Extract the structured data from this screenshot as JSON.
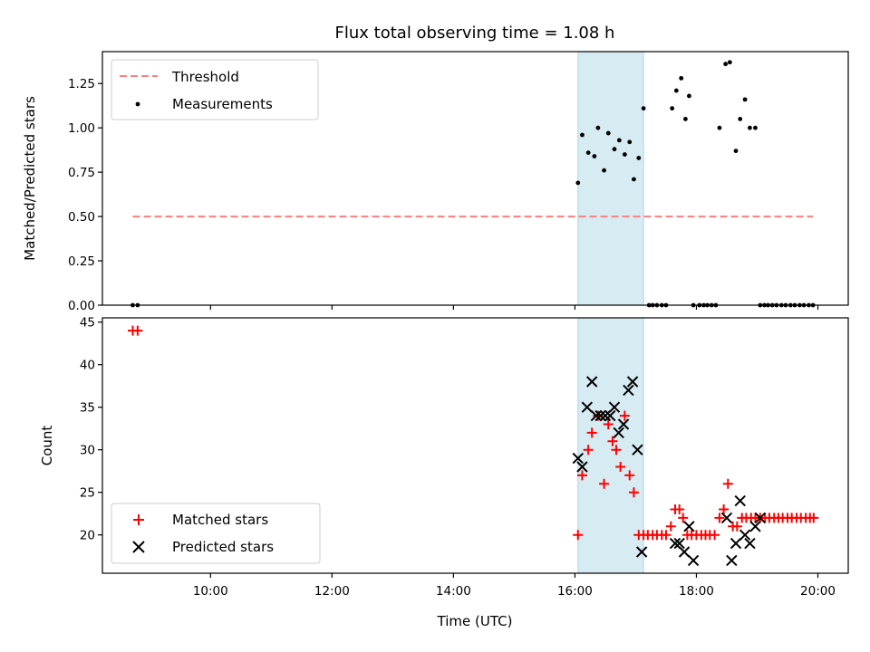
{
  "chart_data": [
    {
      "type": "scatter",
      "title": "Flux total observing time = 1.08 h",
      "xlabel": "",
      "ylabel": "Matched/Predicted stars",
      "xlim": [
        8.22,
        20.5
      ],
      "ylim": [
        0,
        1.43
      ],
      "yticks": [
        0.0,
        0.25,
        0.5,
        0.75,
        1.0,
        1.25
      ],
      "ytick_labels": [
        "0.00",
        "0.25",
        "0.50",
        "0.75",
        "1.00",
        "1.25"
      ],
      "shaded_region": [
        16.05,
        17.13
      ],
      "threshold": {
        "name": "Threshold",
        "y": 0.5,
        "x_range": [
          8.72,
          19.92
        ],
        "color": "#ff7f7f",
        "style": "dashed"
      },
      "legend": {
        "placement": "upper-left",
        "entries": [
          "Threshold",
          "Measurements"
        ]
      },
      "series": [
        {
          "name": "Measurements",
          "color": "#000000",
          "marker": "dot",
          "x": [
            8.72,
            8.8,
            16.05,
            16.12,
            16.22,
            16.32,
            16.38,
            16.48,
            16.55,
            16.65,
            16.73,
            16.82,
            16.9,
            16.97,
            17.05,
            17.13,
            17.22,
            17.28,
            17.35,
            17.43,
            17.5,
            17.6,
            17.67,
            17.75,
            17.82,
            17.88,
            17.95,
            18.05,
            18.12,
            18.18,
            18.25,
            18.32,
            18.38,
            18.48,
            18.55,
            18.65,
            18.72,
            18.8,
            18.88,
            18.97,
            19.05,
            19.12,
            19.18,
            19.25,
            19.32,
            19.4,
            19.47,
            19.55,
            19.62,
            19.7,
            19.77,
            19.85,
            19.92
          ],
          "y": [
            0.0,
            0.0,
            0.69,
            0.96,
            0.86,
            0.84,
            1.0,
            0.76,
            0.97,
            0.88,
            0.93,
            0.85,
            0.92,
            0.71,
            0.83,
            1.11,
            0.0,
            0.0,
            0.0,
            0.0,
            0.0,
            1.11,
            1.21,
            1.28,
            1.05,
            1.18,
            0.0,
            0.0,
            0.0,
            0.0,
            0.0,
            0.0,
            1.0,
            1.36,
            1.37,
            0.87,
            1.05,
            1.16,
            1.0,
            1.0,
            0.0,
            0.0,
            0.0,
            0.0,
            0.0,
            0.0,
            0.0,
            0.0,
            0.0,
            0.0,
            0.0,
            0.0,
            0.0
          ]
        }
      ]
    },
    {
      "type": "scatter",
      "title": "",
      "xlabel": "Time (UTC)",
      "ylabel": "Count",
      "xlim": [
        8.22,
        20.5
      ],
      "ylim": [
        15.5,
        45.5
      ],
      "yticks": [
        20,
        25,
        30,
        35,
        40,
        45
      ],
      "xticks": [
        10,
        12,
        14,
        16,
        18,
        20
      ],
      "xtick_labels": [
        "10:00",
        "12:00",
        "14:00",
        "16:00",
        "18:00",
        "20:00"
      ],
      "shaded_region": [
        16.05,
        17.13
      ],
      "legend": {
        "placement": "lower-left",
        "entries": [
          "Matched stars",
          "Predicted stars"
        ]
      },
      "series": [
        {
          "name": "Matched stars",
          "color": "#ff0000",
          "marker": "plus",
          "x": [
            8.72,
            8.8,
            16.05,
            16.12,
            16.22,
            16.28,
            16.38,
            16.48,
            16.55,
            16.62,
            16.68,
            16.75,
            16.82,
            16.9,
            16.97,
            17.05,
            17.13,
            17.2,
            17.28,
            17.35,
            17.43,
            17.5,
            17.58,
            17.65,
            17.72,
            17.78,
            17.85,
            17.92,
            18.0,
            18.08,
            18.15,
            18.22,
            18.3,
            18.38,
            18.45,
            18.52,
            18.6,
            18.67,
            18.75,
            18.82,
            18.9,
            18.97,
            19.05,
            19.13,
            19.2,
            19.28,
            19.35,
            19.42,
            19.5,
            19.57,
            19.65,
            19.72,
            19.8,
            19.87,
            19.93
          ],
          "y": [
            44,
            44,
            20,
            27,
            30,
            32,
            34,
            26,
            33,
            31,
            30,
            28,
            34,
            27,
            25,
            20,
            20,
            20,
            20,
            20,
            20,
            20,
            21,
            23,
            23,
            22,
            20,
            20,
            20,
            20,
            20,
            20,
            20,
            22,
            23,
            26,
            21,
            21,
            22,
            22,
            22,
            22,
            22,
            22,
            22,
            22,
            22,
            22,
            22,
            22,
            22,
            22,
            22,
            22,
            22
          ]
        },
        {
          "name": "Predicted stars",
          "color": "#000000",
          "marker": "x",
          "x": [
            16.05,
            16.12,
            16.2,
            16.28,
            16.35,
            16.42,
            16.5,
            16.58,
            16.65,
            16.72,
            16.8,
            16.88,
            16.95,
            17.03,
            17.1,
            17.65,
            17.72,
            17.8,
            17.88,
            17.95,
            18.5,
            18.58,
            18.65,
            18.72,
            18.8,
            18.88,
            18.97,
            19.05
          ],
          "y": [
            29,
            28,
            35,
            38,
            34,
            34,
            34,
            34,
            35,
            32,
            33,
            37,
            38,
            30,
            18,
            19,
            19,
            18,
            21,
            17,
            22,
            17,
            19,
            24,
            20,
            19,
            21,
            22
          ]
        }
      ]
    }
  ]
}
